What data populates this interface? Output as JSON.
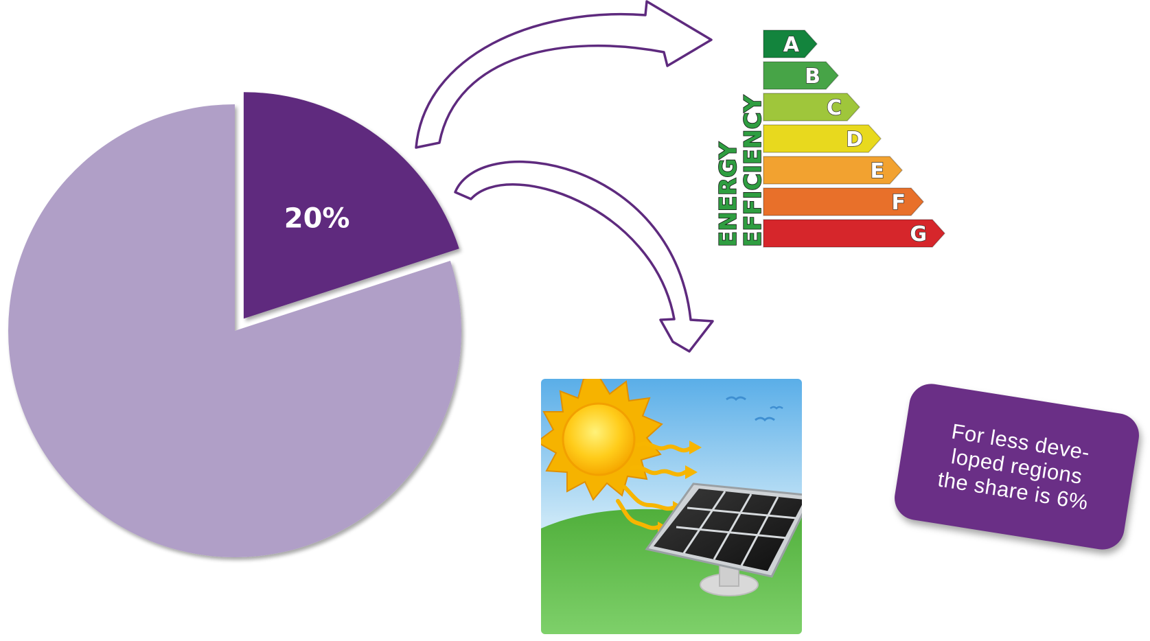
{
  "chart_data": {
    "type": "pie",
    "values": [
      20,
      80
    ],
    "slices": [
      {
        "value": 20,
        "label": "20%",
        "exploded": true,
        "color": "#5e2a7e"
      },
      {
        "value": 80,
        "label": "",
        "exploded": false,
        "color": "#b09fc7"
      }
    ]
  },
  "energy_label": {
    "words": [
      "ENERGY",
      "EFFICIENCY"
    ],
    "grades": [
      {
        "letter": "A",
        "color": "#13843d"
      },
      {
        "letter": "B",
        "color": "#47a447"
      },
      {
        "letter": "C",
        "color": "#9fc63b"
      },
      {
        "letter": "D",
        "color": "#e8d91e"
      },
      {
        "letter": "E",
        "color": "#f2a230"
      },
      {
        "letter": "F",
        "color": "#e8702a"
      },
      {
        "letter": "G",
        "color": "#d6262b"
      }
    ]
  },
  "illustrations": {
    "solar_scene": {
      "icon": "sun-and-solar-panel-icon"
    }
  },
  "arrows": [
    {
      "name": "arrow-to-energy-efficiency",
      "color": "#5e2a7e"
    },
    {
      "name": "arrow-to-solar-panel",
      "color": "#5e2a7e"
    }
  ],
  "note": {
    "text": "For less deve-\nloped regions\nthe share is 6%",
    "color": "#6a2f86"
  }
}
